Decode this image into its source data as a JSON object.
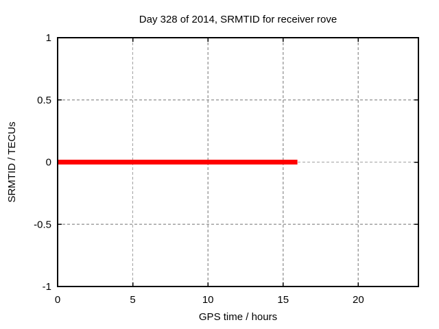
{
  "figure": {
    "title": "Day 328 of 2014, SRMTID for receiver rove",
    "xlabel": "GPS time / hours",
    "ylabel": "SRMTID / TECUs"
  },
  "colors": {
    "line": "#ff0000",
    "grid": "#a0a0a0",
    "border": "#000000",
    "background": "#ffffff",
    "text": "#000000"
  },
  "chart_data": {
    "type": "line",
    "title": "Day 328 of 2014, SRMTID for receiver rove",
    "xlabel": "GPS time / hours",
    "ylabel": "SRMTID / TECUs",
    "xlim": [
      0,
      24
    ],
    "ylim": [
      -1,
      1
    ],
    "xticks": [
      0,
      5,
      10,
      15,
      20
    ],
    "yticks": [
      1,
      0.5,
      0,
      -0.5,
      -1
    ],
    "grid": true,
    "grid_style": "dashed",
    "tick_direction": "in",
    "tick_mirror": true,
    "legend": "none",
    "series": [
      {
        "name": "SRMTID",
        "color": "#ff0000",
        "linewidth": 7,
        "x": [
          0,
          15.95
        ],
        "y": [
          0,
          0
        ]
      }
    ]
  }
}
